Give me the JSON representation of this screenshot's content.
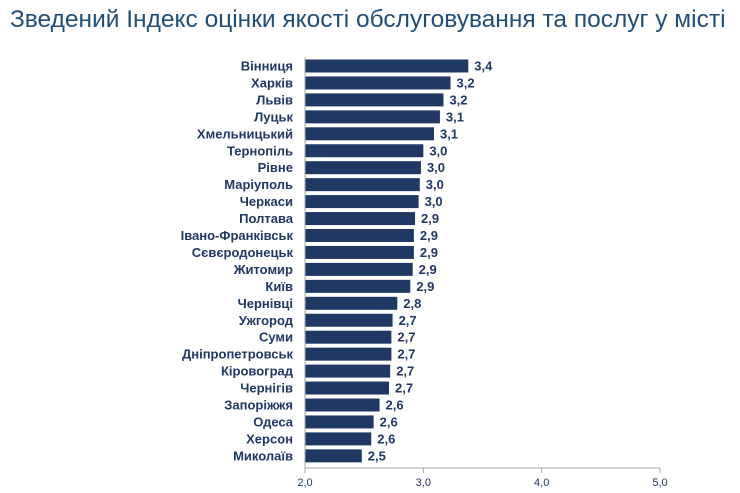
{
  "chart_data": {
    "type": "bar",
    "orientation": "horizontal",
    "title": "Зведений Індекс оцінки якості обслуговування та послуг у місті",
    "categories": [
      "Вінниця",
      "Харків",
      "Львів",
      "Луцьк",
      "Хмельницький",
      "Тернопіль",
      "Рівне",
      "Маріуполь",
      "Черкаси",
      "Полтава",
      "Івано-Франківськ",
      "Сєвєродонецьк",
      "Житомир",
      "Київ",
      "Чернівці",
      "Ужгород",
      "Суми",
      "Дніпропетровськ",
      "Кіровоград",
      "Чернігів",
      "Запоріжжя",
      "Одеса",
      "Херсон",
      "Миколаїв"
    ],
    "values": [
      3.38,
      3.23,
      3.17,
      3.14,
      3.09,
      3.0,
      2.98,
      2.97,
      2.96,
      2.93,
      2.92,
      2.92,
      2.91,
      2.89,
      2.78,
      2.74,
      2.73,
      2.73,
      2.72,
      2.71,
      2.63,
      2.58,
      2.56,
      2.48
    ],
    "value_labels": [
      "3,4",
      "3,2",
      "3,2",
      "3,1",
      "3,1",
      "3,0",
      "3,0",
      "3,0",
      "3,0",
      "2,9",
      "2,9",
      "2,9",
      "2,9",
      "2,9",
      "2,8",
      "2,7",
      "2,7",
      "2,7",
      "2,7",
      "2,7",
      "2,6",
      "2,6",
      "2,6",
      "2,5"
    ],
    "xlim": [
      2.0,
      5.0
    ],
    "xticks": [
      "2,0",
      "3,0",
      "4,0",
      "5,0"
    ],
    "grid": false,
    "colors": {
      "bar": "#1f3864",
      "text": "#1f3864",
      "title": "#1f4e79",
      "axis": "#a6a6a6"
    }
  }
}
